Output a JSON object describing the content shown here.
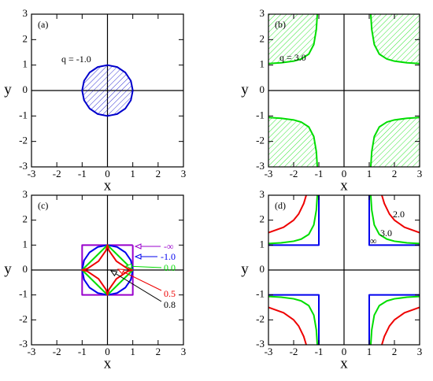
{
  "chart_data": [
    {
      "type": "line",
      "panel_label": "(a)",
      "xlabel": "x",
      "ylabel": "y",
      "xlim": [
        -3,
        3
      ],
      "ylim": [
        -3,
        3
      ],
      "xticks": [
        -3,
        -2,
        -1,
        0,
        1,
        2,
        3
      ],
      "yticks": [
        -3,
        -2,
        -1,
        0,
        1,
        2,
        3
      ],
      "zero_lines": true,
      "series": [
        {
          "color": "#0000cc",
          "hatch": true,
          "x": [
            1,
            0.924,
            0.707,
            0.383,
            0,
            -0.383,
            -0.707,
            -0.924,
            -1,
            -0.924,
            -0.707,
            -0.383,
            0,
            0.383,
            0.707,
            0.924,
            1
          ],
          "y": [
            0,
            0.383,
            0.707,
            0.924,
            1,
            0.924,
            0.707,
            0.383,
            0,
            -0.383,
            -0.707,
            -0.924,
            -1,
            -0.924,
            -0.707,
            -0.383,
            0
          ]
        }
      ],
      "annotations": [
        {
          "text": "q = -1.0",
          "color": "#000000"
        }
      ]
    },
    {
      "type": "line",
      "panel_label": "(b)",
      "xlabel": "x",
      "ylabel": "y",
      "xlim": [
        -3,
        3
      ],
      "ylim": [
        -3,
        3
      ],
      "xticks": [
        -3,
        -2,
        -1,
        0,
        1,
        2,
        3
      ],
      "yticks": [
        -3,
        -2,
        -1,
        0,
        1,
        2,
        3
      ],
      "zero_lines": true,
      "series": [
        {
          "color": "#00dd00",
          "hatch": true,
          "x": [
            1.061,
            1.1,
            1.2,
            1.4,
            1.7,
            2.0,
            2.5,
            3.0,
            null,
            -1.061,
            -1.1,
            -1.2,
            -1.4,
            -1.7,
            -2.0,
            -2.5,
            -3.0,
            null,
            -1.061,
            -1.1,
            -1.2,
            -1.4,
            -1.7,
            -2.0,
            -2.5,
            -3.0,
            null,
            1.061,
            1.1,
            1.2,
            1.4,
            1.7,
            2.0,
            2.5,
            3.0
          ],
          "y": [
            3.0,
            2.4,
            1.81,
            1.43,
            1.24,
            1.155,
            1.091,
            1.061,
            null,
            3.0,
            2.4,
            1.81,
            1.43,
            1.24,
            1.155,
            1.091,
            1.061,
            null,
            -3.0,
            -2.4,
            -1.81,
            -1.43,
            -1.24,
            -1.155,
            -1.091,
            -1.061,
            null,
            -3.0,
            -2.4,
            -1.81,
            -1.43,
            -1.24,
            -1.155,
            -1.091,
            -1.061
          ]
        }
      ],
      "annotations": [
        {
          "text": "q = 3.0",
          "color": "#000000"
        }
      ]
    },
    {
      "type": "line",
      "panel_label": "(c)",
      "xlabel": "x",
      "ylabel": "y",
      "xlim": [
        -3,
        3
      ],
      "ylim": [
        -3,
        3
      ],
      "xticks": [
        -3,
        -2,
        -1,
        0,
        1,
        2,
        3
      ],
      "yticks": [
        -3,
        -2,
        -1,
        0,
        1,
        2,
        3
      ],
      "zero_lines": true,
      "series": [
        {
          "color": "#9900cc",
          "x": [
            1,
            -1,
            -1,
            1,
            1
          ],
          "y": [
            1,
            1,
            -1,
            -1,
            1
          ]
        },
        {
          "color": "#0000ee",
          "x": [
            1,
            0.924,
            0.707,
            0.383,
            0,
            -0.383,
            -0.707,
            -0.924,
            -1,
            -0.924,
            -0.707,
            -0.383,
            0,
            0.383,
            0.707,
            0.924,
            1
          ],
          "y": [
            0,
            0.383,
            0.707,
            0.924,
            1,
            0.924,
            0.707,
            0.383,
            0,
            -0.383,
            -0.707,
            -0.924,
            -1,
            -0.924,
            -0.707,
            -0.383,
            0
          ]
        },
        {
          "color": "#00dd00",
          "x": [
            1,
            0,
            -1,
            0,
            1
          ],
          "y": [
            0,
            1,
            0,
            -1,
            0
          ]
        },
        {
          "color": "#ee0000",
          "x": [
            1,
            0.789,
            0.354,
            0.056,
            0,
            -0.056,
            -0.354,
            -0.789,
            -1,
            -0.789,
            -0.354,
            -0.056,
            0,
            0.056,
            0.354,
            0.789,
            1
          ],
          "y": [
            0,
            0.056,
            0.354,
            0.789,
            1,
            0.789,
            0.354,
            0.056,
            0,
            -0.056,
            -0.354,
            -0.789,
            -1,
            -0.789,
            -0.354,
            -0.056,
            0
          ]
        }
      ],
      "annotations": [
        {
          "text": "-∞",
          "color": "#9900cc"
        },
        {
          "text": "-1.0",
          "color": "#0000ee"
        },
        {
          "text": "0.0",
          "color": "#00dd00"
        },
        {
          "text": "0.5",
          "color": "#ee0000"
        },
        {
          "text": "0.8",
          "color": "#000000"
        }
      ]
    },
    {
      "type": "line",
      "panel_label": "(d)",
      "xlabel": "x",
      "ylabel": "y",
      "xlim": [
        -3,
        3
      ],
      "ylim": [
        -3,
        3
      ],
      "xticks": [
        -3,
        -2,
        -1,
        0,
        1,
        2,
        3
      ],
      "yticks": [
        -3,
        -2,
        -1,
        0,
        1,
        2,
        3
      ],
      "zero_lines": true,
      "series": [
        {
          "color": "#ee0000",
          "x": [
            1.5,
            1.6,
            1.8,
            2.0,
            2.4,
            3.0,
            null,
            -1.5,
            -1.6,
            -1.8,
            -2.0,
            -2.4,
            -3.0,
            null,
            -1.5,
            -1.6,
            -1.8,
            -2.0,
            -2.4,
            -3.0,
            null,
            1.5,
            1.6,
            1.8,
            2.0,
            2.4,
            3.0
          ],
          "y": [
            3.0,
            2.667,
            2.25,
            2.0,
            1.714,
            1.5,
            null,
            3.0,
            2.667,
            2.25,
            2.0,
            1.714,
            1.5,
            null,
            -3.0,
            -2.667,
            -2.25,
            -2.0,
            -1.714,
            -1.5,
            null,
            -3.0,
            -2.667,
            -2.25,
            -2.0,
            -1.714,
            -1.5
          ]
        },
        {
          "color": "#00dd00",
          "x": [
            1.061,
            1.1,
            1.2,
            1.4,
            1.7,
            2.0,
            2.5,
            3.0,
            null,
            -1.061,
            -1.1,
            -1.2,
            -1.4,
            -1.7,
            -2.0,
            -2.5,
            -3.0,
            null,
            -1.061,
            -1.1,
            -1.2,
            -1.4,
            -1.7,
            -2.0,
            -2.5,
            -3.0,
            null,
            1.061,
            1.1,
            1.2,
            1.4,
            1.7,
            2.0,
            2.5,
            3.0
          ],
          "y": [
            3.0,
            2.4,
            1.81,
            1.43,
            1.24,
            1.155,
            1.091,
            1.061,
            null,
            3.0,
            2.4,
            1.81,
            1.43,
            1.24,
            1.155,
            1.091,
            1.061,
            null,
            -3.0,
            -2.4,
            -1.81,
            -1.43,
            -1.24,
            -1.155,
            -1.091,
            -1.061,
            null,
            -3.0,
            -2.4,
            -1.81,
            -1.43,
            -1.24,
            -1.155,
            -1.091,
            -1.061
          ]
        },
        {
          "color": "#0000ee",
          "x": [
            1,
            1,
            3,
            null,
            -1,
            -1,
            -3,
            null,
            -1,
            -1,
            -3,
            null,
            1,
            1,
            3
          ],
          "y": [
            3,
            1,
            1,
            null,
            3,
            1,
            1,
            null,
            -3,
            -1,
            -1,
            null,
            -3,
            -1,
            -1
          ]
        }
      ],
      "annotations": [
        {
          "text": "2.0",
          "color": "#000000"
        },
        {
          "text": "3.0",
          "color": "#000000"
        },
        {
          "text": "∞",
          "color": "#000000"
        }
      ]
    }
  ]
}
